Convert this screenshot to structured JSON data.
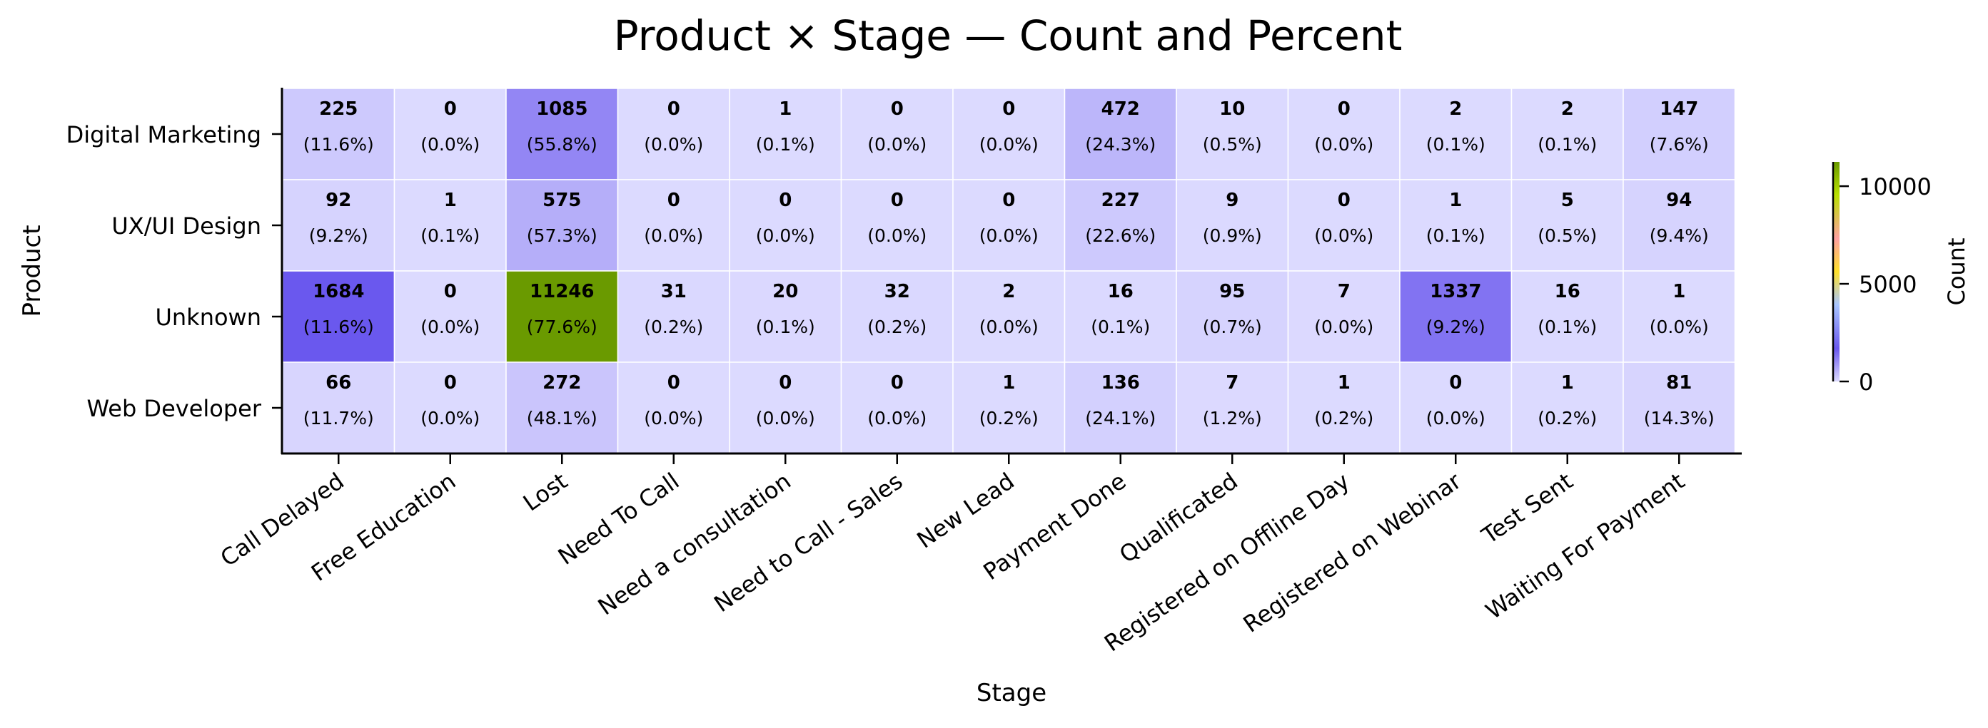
{
  "chart_data": {
    "type": "heatmap",
    "title": "Product × Stage — Count and Percent",
    "xlabel": "Stage",
    "ylabel": "Product",
    "x_categories": [
      "Call Delayed",
      "Free Education",
      "Lost",
      "Need To Call",
      "Need a consultation",
      "Need to Call - Sales",
      "New Lead",
      "Payment Done",
      "Qualificated",
      "Registered on Offline Day",
      "Registered on Webinar",
      "Test Sent",
      "Waiting For Payment"
    ],
    "y_categories": [
      "Digital Marketing",
      "UX/UI Design",
      "Unknown",
      "Web Developer"
    ],
    "values": [
      [
        225,
        0,
        1085,
        0,
        1,
        0,
        0,
        472,
        10,
        0,
        2,
        2,
        147
      ],
      [
        92,
        1,
        575,
        0,
        0,
        0,
        0,
        227,
        9,
        0,
        1,
        5,
        94
      ],
      [
        1684,
        0,
        11246,
        31,
        20,
        32,
        2,
        16,
        95,
        7,
        1337,
        16,
        1
      ],
      [
        66,
        0,
        272,
        0,
        0,
        0,
        1,
        136,
        7,
        1,
        0,
        1,
        81
      ]
    ],
    "percent_labels": [
      [
        "(11.6%)",
        "(0.0%)",
        "(55.8%)",
        "(0.0%)",
        "(0.1%)",
        "(0.0%)",
        "(0.0%)",
        "(24.3%)",
        "(0.5%)",
        "(0.0%)",
        "(0.1%)",
        "(0.1%)",
        "(7.6%)"
      ],
      [
        "(9.2%)",
        "(0.1%)",
        "(57.3%)",
        "(0.0%)",
        "(0.0%)",
        "(0.0%)",
        "(0.0%)",
        "(22.6%)",
        "(0.9%)",
        "(0.0%)",
        "(0.1%)",
        "(0.5%)",
        "(9.4%)"
      ],
      [
        "(11.6%)",
        "(0.0%)",
        "(77.6%)",
        "(0.2%)",
        "(0.1%)",
        "(0.2%)",
        "(0.0%)",
        "(0.1%)",
        "(0.7%)",
        "(0.0%)",
        "(9.2%)",
        "(0.1%)",
        "(0.0%)"
      ],
      [
        "(11.7%)",
        "(0.0%)",
        "(48.1%)",
        "(0.0%)",
        "(0.0%)",
        "(0.0%)",
        "(0.2%)",
        "(24.1%)",
        "(1.2%)",
        "(0.2%)",
        "(0.0%)",
        "(0.2%)",
        "(14.3%)"
      ]
    ],
    "colorbar": {
      "label": "Count",
      "ticks": [
        "0",
        "5000",
        "10000"
      ],
      "range": [
        0,
        11246
      ],
      "colors": [
        "#dcdaff",
        "#6a58ee",
        "#a9c6ff",
        "#ffe12a",
        "#ffa0a0",
        "#b8e000",
        "#6a9a00"
      ]
    },
    "grid": false,
    "legend": "colorbar-right"
  }
}
